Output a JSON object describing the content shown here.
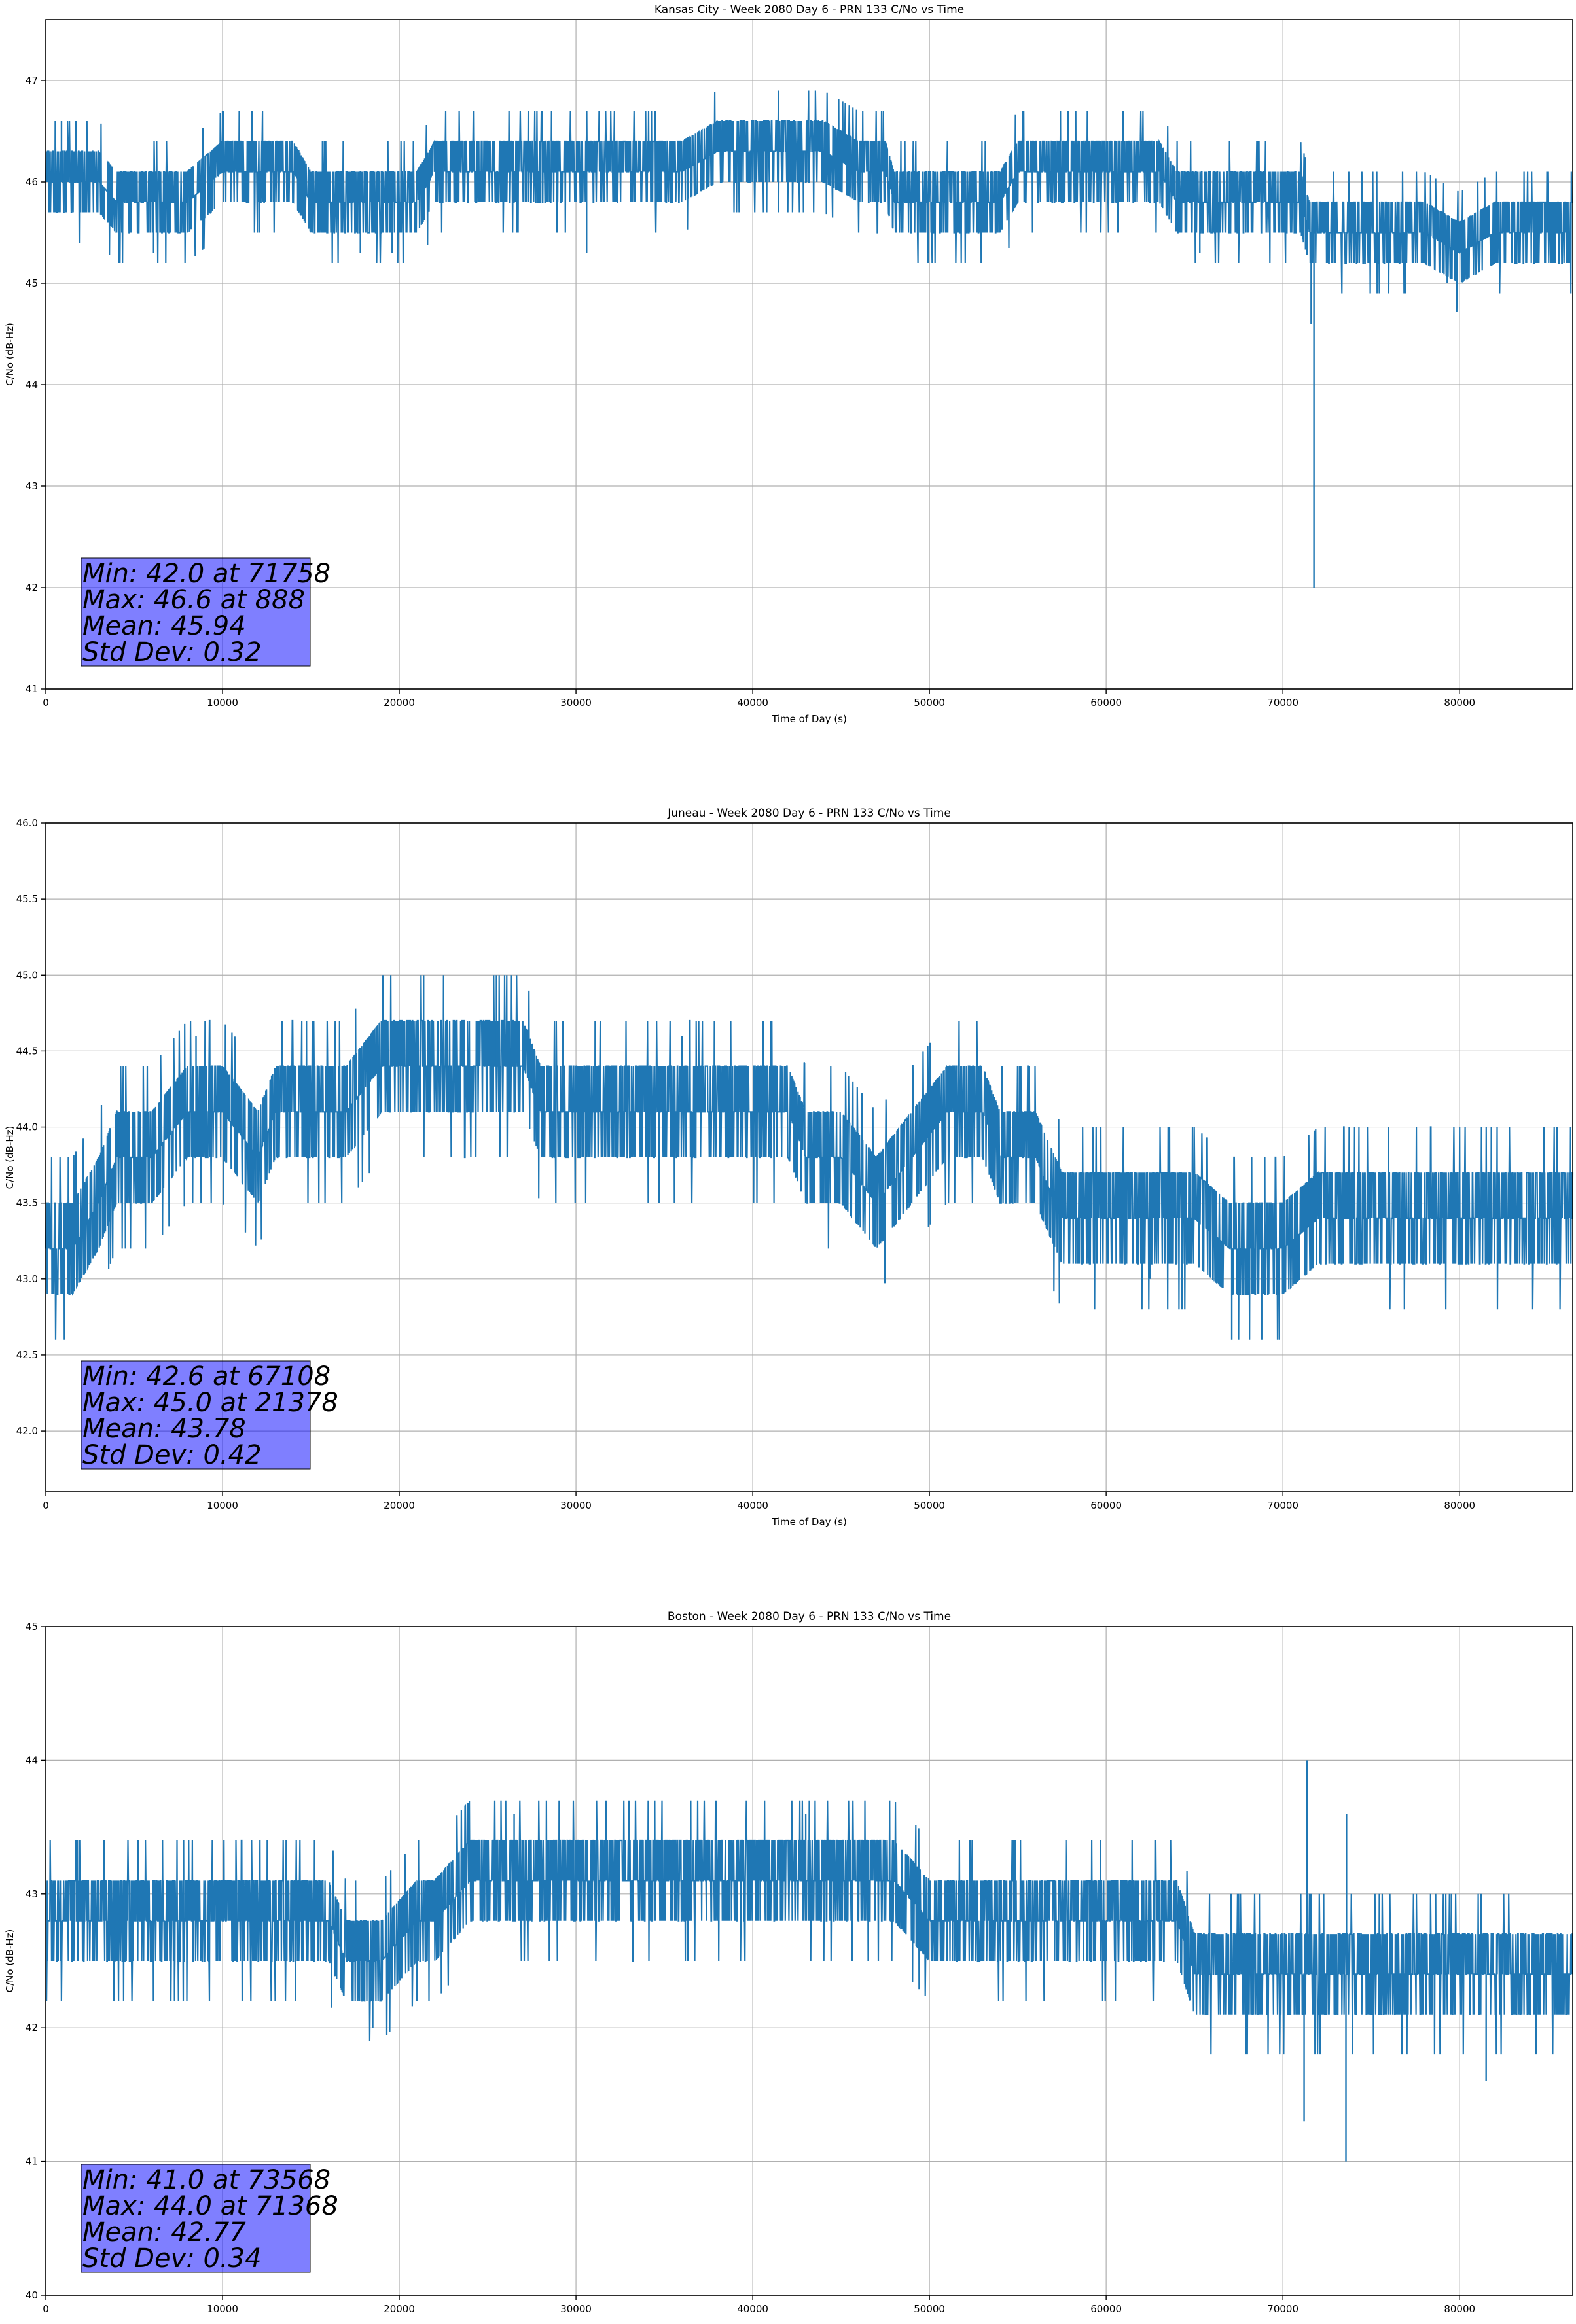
{
  "chart_data": [
    {
      "type": "line",
      "title": "Kansas City - Week 2080 Day 6 - PRN 133 C/No vs Time",
      "xlabel": "Time of Day (s)",
      "ylabel": "C/No (dB-Hz)",
      "xlim": [
        0,
        86400
      ],
      "ylim": [
        41,
        47.6
      ],
      "xticks": [
        0,
        10000,
        20000,
        30000,
        40000,
        50000,
        60000,
        70000,
        80000
      ],
      "yticks": [
        41,
        42,
        43,
        44,
        45,
        46,
        47
      ],
      "ytick_labels": [
        "41",
        "42",
        "43",
        "44",
        "45",
        "46",
        "47"
      ],
      "grid": true,
      "color": "#1f77b4",
      "step": 0.3,
      "series": [
        {
          "x": [
            0,
            3000,
            4000,
            6000,
            8000,
            10000,
            12000,
            14000,
            15000,
            17000,
            19000,
            21000,
            22000,
            24000,
            26000,
            28000,
            30000,
            32000,
            34000,
            36000,
            38000,
            40000,
            42000,
            44000,
            46000,
            47500,
            48000,
            50000,
            52000,
            54000,
            55000,
            57000,
            59000,
            61000,
            63000,
            64000,
            65000,
            67000,
            69000,
            71000,
            71500,
            71758,
            72000,
            74000,
            76000,
            78000,
            80000,
            82000,
            84000,
            86400
          ],
          "y": [
            46.0,
            46.0,
            45.8,
            45.8,
            45.8,
            46.1,
            46.1,
            46.1,
            45.8,
            45.8,
            45.8,
            45.8,
            46.1,
            46.1,
            46.1,
            46.1,
            46.1,
            46.1,
            46.1,
            46.1,
            46.3,
            46.3,
            46.3,
            46.3,
            46.1,
            46.1,
            45.8,
            45.8,
            45.8,
            45.8,
            46.1,
            46.1,
            46.1,
            46.1,
            46.1,
            45.8,
            45.8,
            45.8,
            45.8,
            45.8,
            45.5,
            45.5,
            45.5,
            45.5,
            45.5,
            45.5,
            45.3,
            45.5,
            45.5,
            45.5
          ]
        }
      ],
      "spikes": [
        {
          "x": 888,
          "y": 46.6
        },
        {
          "x": 71758,
          "y": 42.0
        },
        {
          "x": 71600,
          "y": 44.6
        },
        {
          "x": 6100,
          "y": 45.3
        },
        {
          "x": 17800,
          "y": 45.3
        },
        {
          "x": 19600,
          "y": 45.3
        },
        {
          "x": 30600,
          "y": 45.3
        },
        {
          "x": 65300,
          "y": 45.3
        },
        {
          "x": 79300,
          "y": 45.0
        }
      ],
      "stats": {
        "min": "Min: 42.0 at 71758",
        "max": "Max: 46.6 at 888",
        "mean": "Mean: 45.94",
        "std": "Std Dev: 0.32"
      }
    },
    {
      "type": "line",
      "title": "Juneau - Week 2080 Day 6 - PRN 133 C/No vs Time",
      "xlabel": "Time of Day (s)",
      "ylabel": "C/No (dB-Hz)",
      "xlim": [
        0,
        86400
      ],
      "ylim": [
        41.6,
        46.0
      ],
      "xticks": [
        0,
        10000,
        20000,
        30000,
        40000,
        50000,
        60000,
        70000,
        80000
      ],
      "yticks": [
        42.0,
        42.5,
        43.0,
        43.5,
        44.0,
        44.5,
        45.0,
        45.5,
        46.0
      ],
      "ytick_labels": [
        "42.0",
        "42.5",
        "43.0",
        "43.5",
        "44.0",
        "44.5",
        "45.0",
        "45.5",
        "46.0"
      ],
      "grid": true,
      "color": "#1f77b4",
      "step": 0.3,
      "series": [
        {
          "x": [
            0,
            1500,
            3000,
            4000,
            6000,
            8000,
            10000,
            12000,
            13000,
            15000,
            17000,
            19000,
            21000,
            23000,
            25000,
            27000,
            28000,
            30000,
            32000,
            34000,
            36000,
            38000,
            40000,
            42000,
            43000,
            45000,
            47000,
            49000,
            51000,
            53000,
            54000,
            56000,
            57500,
            59000,
            61000,
            63000,
            65000,
            67000,
            68000,
            70000,
            72000,
            74000,
            76000,
            78000,
            80000,
            82000,
            84000,
            86400
          ],
          "y": [
            43.2,
            43.2,
            43.5,
            43.8,
            43.8,
            44.1,
            44.1,
            43.8,
            44.1,
            44.1,
            44.1,
            44.4,
            44.4,
            44.4,
            44.4,
            44.4,
            44.1,
            44.1,
            44.1,
            44.1,
            44.1,
            44.1,
            44.1,
            44.1,
            43.8,
            43.8,
            43.5,
            43.8,
            44.1,
            44.1,
            43.8,
            43.8,
            43.4,
            43.4,
            43.4,
            43.4,
            43.4,
            43.2,
            43.2,
            43.2,
            43.4,
            43.4,
            43.4,
            43.4,
            43.4,
            43.4,
            43.4,
            43.4
          ]
        }
      ],
      "spikes": [
        {
          "x": 21378,
          "y": 45.0
        },
        {
          "x": 25500,
          "y": 45.0
        },
        {
          "x": 67108,
          "y": 42.6
        },
        {
          "x": 68800,
          "y": 42.6
        },
        {
          "x": 69800,
          "y": 42.6
        },
        {
          "x": 8500,
          "y": 44.6
        },
        {
          "x": 36000,
          "y": 44.6
        },
        {
          "x": 62500,
          "y": 43.0
        }
      ],
      "stats": {
        "min": "Min: 42.6 at 67108",
        "max": "Max: 45.0 at 21378",
        "mean": "Mean: 43.78",
        "std": "Std Dev: 0.42"
      }
    },
    {
      "type": "line",
      "title": "Boston - Week 2080 Day 6 - PRN 133 C/No vs Time",
      "xlabel": "Time of Day (s)",
      "ylabel": "C/No (dB-Hz)",
      "xlim": [
        0,
        86400
      ],
      "ylim": [
        40,
        45
      ],
      "xticks": [
        0,
        10000,
        20000,
        30000,
        40000,
        50000,
        60000,
        70000,
        80000
      ],
      "yticks": [
        40,
        41,
        42,
        43,
        44,
        45
      ],
      "ytick_labels": [
        "40",
        "41",
        "42",
        "43",
        "44",
        "45"
      ],
      "grid": true,
      "color": "#1f77b4",
      "step": 0.3,
      "series": [
        {
          "x": [
            0,
            2000,
            4000,
            6000,
            8000,
            10000,
            12000,
            14000,
            16000,
            17000,
            19000,
            21000,
            22000,
            24000,
            26000,
            28000,
            30000,
            32000,
            34000,
            36000,
            38000,
            40000,
            42000,
            44000,
            46000,
            48000,
            50000,
            52000,
            54000,
            56000,
            58000,
            60000,
            62000,
            64000,
            65000,
            67000,
            69000,
            71000,
            73000,
            75000,
            77000,
            79000,
            81000,
            83000,
            85000,
            86400
          ],
          "y": [
            42.8,
            42.8,
            42.8,
            42.8,
            42.8,
            42.8,
            42.8,
            42.8,
            42.8,
            42.5,
            42.5,
            42.8,
            42.8,
            43.1,
            43.1,
            43.1,
            43.1,
            43.1,
            43.1,
            43.1,
            43.1,
            43.1,
            43.1,
            43.1,
            43.1,
            43.1,
            42.8,
            42.8,
            42.8,
            42.8,
            42.8,
            42.8,
            42.8,
            42.8,
            42.4,
            42.4,
            42.4,
            42.4,
            42.4,
            42.4,
            42.4,
            42.4,
            42.4,
            42.4,
            42.4,
            42.4
          ]
        }
      ],
      "spikes": [
        {
          "x": 71368,
          "y": 44.0
        },
        {
          "x": 71200,
          "y": 41.3
        },
        {
          "x": 73568,
          "y": 41.0
        },
        {
          "x": 73600,
          "y": 43.6
        },
        {
          "x": 81500,
          "y": 41.6
        },
        {
          "x": 18500,
          "y": 42.0
        },
        {
          "x": 26500,
          "y": 43.6
        },
        {
          "x": 43000,
          "y": 43.6
        }
      ],
      "stats": {
        "min": "Min: 41.0 at 73568",
        "max": "Max: 44.0 at 71368",
        "mean": "Mean: 42.77",
        "std": "Std Dev: 0.34"
      }
    }
  ]
}
